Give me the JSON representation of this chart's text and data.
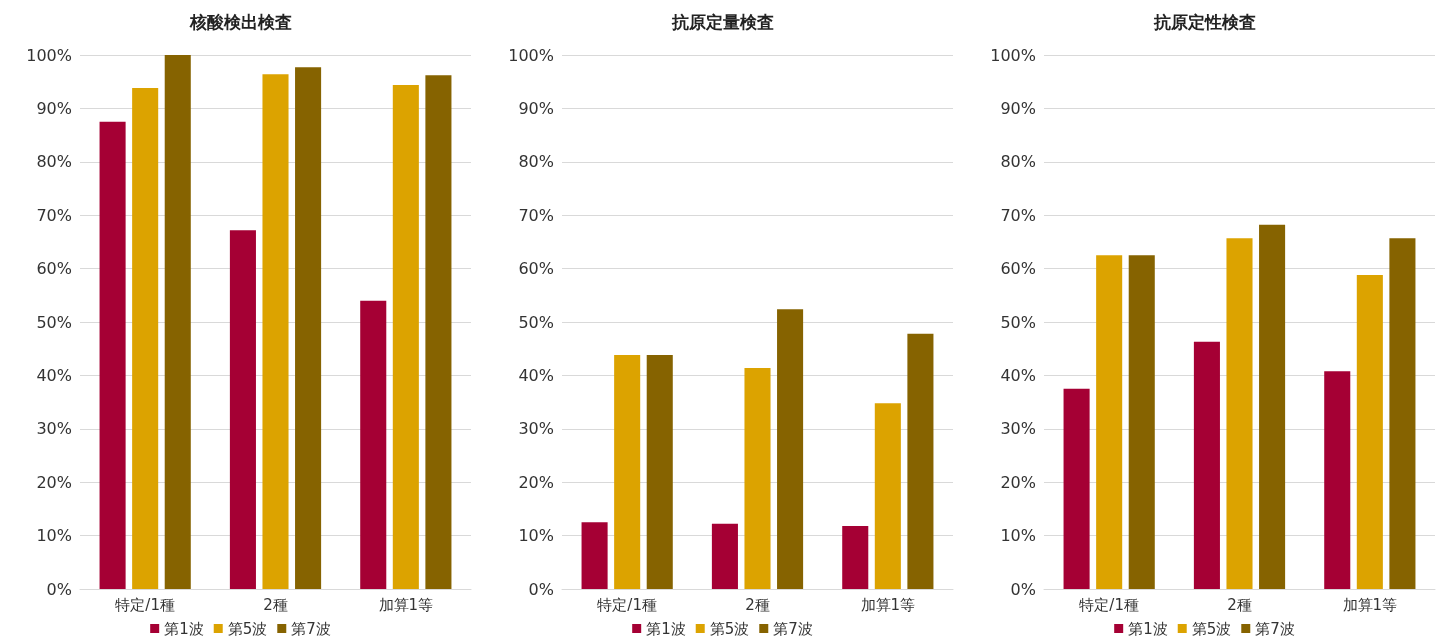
{
  "chart_data": [
    {
      "type": "bar",
      "title": "核酸検出検査",
      "categories": [
        "特定/1種",
        "2種",
        "加算1等"
      ],
      "series": [
        {
          "name": "第1波",
          "color": "#a50034",
          "values": [
            87.5,
            67.2,
            54
          ]
        },
        {
          "name": "第5波",
          "color": "#dca300",
          "values": [
            93.8,
            96.4,
            94.4
          ]
        },
        {
          "name": "第7波",
          "color": "#866300",
          "values": [
            100,
            97.7,
            96.2
          ]
        }
      ],
      "ylim": [
        0,
        100
      ],
      "yticks": [
        {
          "value": 0,
          "label": "0%"
        },
        {
          "value": 10,
          "label": "10%"
        },
        {
          "value": 20,
          "label": "20%"
        },
        {
          "value": 30,
          "label": "30%"
        },
        {
          "value": 40,
          "label": "40%"
        },
        {
          "value": 50,
          "label": "50%"
        },
        {
          "value": 60,
          "label": "60%"
        },
        {
          "value": 70,
          "label": "70%"
        },
        {
          "value": 80,
          "label": "80%"
        },
        {
          "value": 90,
          "label": "90%"
        },
        {
          "value": 100,
          "label": "100%"
        }
      ],
      "grid": "y",
      "legend": "bottom"
    },
    {
      "type": "bar",
      "title": "抗原定量検査",
      "categories": [
        "特定/1種",
        "2種",
        "加算1等"
      ],
      "series": [
        {
          "name": "第1波",
          "color": "#a50034",
          "values": [
            12.5,
            12.2,
            11.8
          ]
        },
        {
          "name": "第5波",
          "color": "#dca300",
          "values": [
            43.8,
            41.4,
            34.8
          ]
        },
        {
          "name": "第7波",
          "color": "#866300",
          "values": [
            43.8,
            52.4,
            47.8
          ]
        }
      ],
      "ylim": [
        0,
        100
      ],
      "yticks": [
        {
          "value": 0,
          "label": "0%"
        },
        {
          "value": 10,
          "label": "10%"
        },
        {
          "value": 20,
          "label": "20%"
        },
        {
          "value": 30,
          "label": "30%"
        },
        {
          "value": 40,
          "label": "40%"
        },
        {
          "value": 50,
          "label": "50%"
        },
        {
          "value": 60,
          "label": "60%"
        },
        {
          "value": 70,
          "label": "70%"
        },
        {
          "value": 80,
          "label": "80%"
        },
        {
          "value": 90,
          "label": "90%"
        },
        {
          "value": 100,
          "label": "100%"
        }
      ],
      "grid": "y",
      "legend": "bottom"
    },
    {
      "type": "bar",
      "title": "抗原定性検査",
      "categories": [
        "特定/1種",
        "2種",
        "加算1等"
      ],
      "series": [
        {
          "name": "第1波",
          "color": "#a50034",
          "values": [
            37.5,
            46.3,
            40.8
          ]
        },
        {
          "name": "第5波",
          "color": "#dca300",
          "values": [
            62.5,
            65.7,
            58.8
          ]
        },
        {
          "name": "第7波",
          "color": "#866300",
          "values": [
            62.5,
            68.2,
            65.7
          ]
        }
      ],
      "ylim": [
        0,
        100
      ],
      "yticks": [
        {
          "value": 0,
          "label": "0%"
        },
        {
          "value": 10,
          "label": "10%"
        },
        {
          "value": 20,
          "label": "20%"
        },
        {
          "value": 30,
          "label": "30%"
        },
        {
          "value": 40,
          "label": "40%"
        },
        {
          "value": 50,
          "label": "50%"
        },
        {
          "value": 60,
          "label": "60%"
        },
        {
          "value": 70,
          "label": "70%"
        },
        {
          "value": 80,
          "label": "80%"
        },
        {
          "value": 90,
          "label": "90%"
        },
        {
          "value": 100,
          "label": "100%"
        }
      ],
      "grid": "y",
      "legend": "bottom"
    }
  ]
}
